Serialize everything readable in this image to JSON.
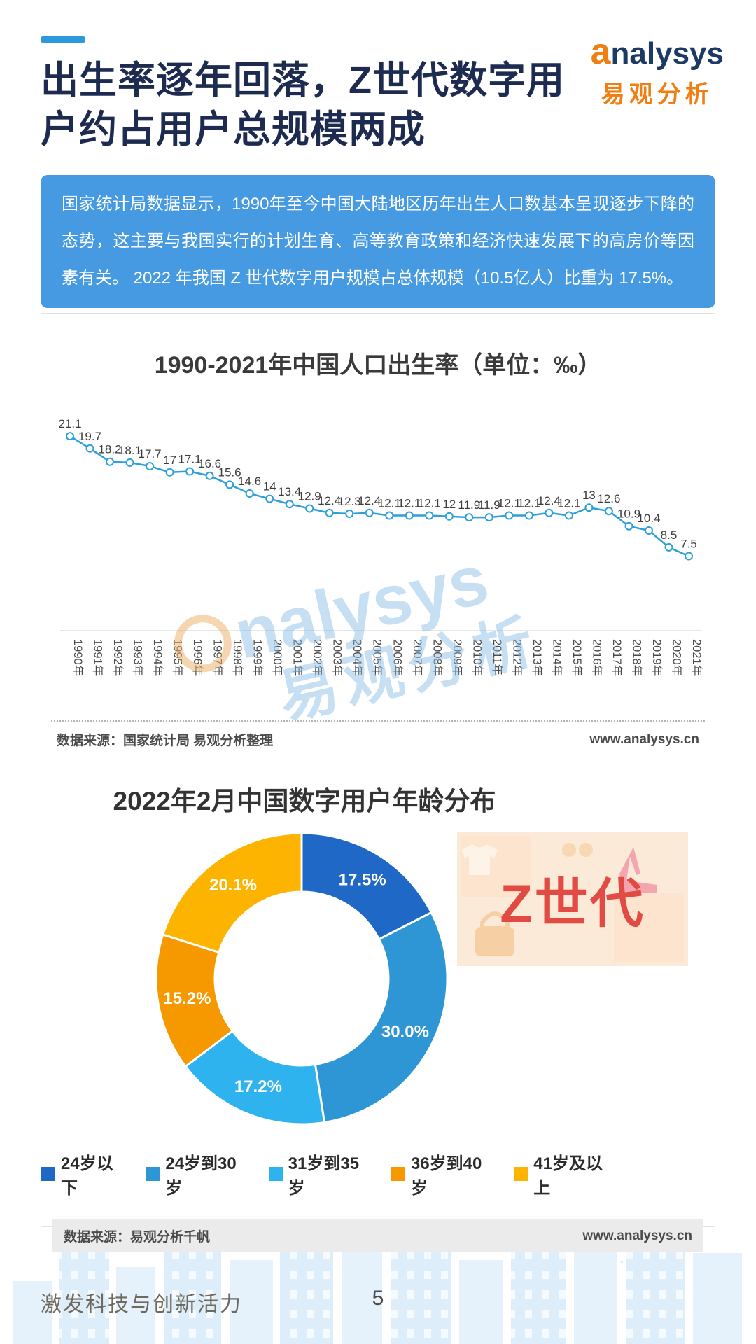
{
  "page": {
    "title_line1": "出生率逐年回落，Z世代数字用",
    "title_line2": "户约占用户总规模两成",
    "footer_slogan": "激发科技与创新活力",
    "page_number": "5"
  },
  "logo": {
    "name_a": "a",
    "name_rest": "nalysys",
    "cn": "易观分析"
  },
  "intro": {
    "text": "国家统计局数据显示，1990年至今中国大陆地区历年出生人口数基本呈现逐步下降的态势，这主要与我国实行的计划生育、高等教育政策和经济快速发展下的高房价等因素有关。 2022 年我国 Z 世代数字用户规模占总体规模（10.5亿人）比重为 17.5%。"
  },
  "line_chart": {
    "source": "数据来源：国家统计局 易观分析整理",
    "url": "www.analysys.cn"
  },
  "donut_chart": {
    "source": "数据来源：易观分析千帆",
    "url": "www.analysys.cn",
    "genz_label": "Z世代"
  },
  "watermark": {
    "en": "nalysys",
    "cn": "易观分析"
  },
  "chart_data": [
    {
      "type": "line",
      "title": "1990-2021年中国人口出生率（单位：‰）",
      "x": [
        "1990年",
        "1991年",
        "1992年",
        "1993年",
        "1994年",
        "1995年",
        "1996年",
        "1997年",
        "1998年",
        "1999年",
        "2000年",
        "2001年",
        "2002年",
        "2003年",
        "2004年",
        "2005年",
        "2006年",
        "2007年",
        "2008年",
        "2009年",
        "2010年",
        "2011年",
        "2012年",
        "2013年",
        "2014年",
        "2015年",
        "2016年",
        "2017年",
        "2018年",
        "2019年",
        "2020年",
        "2021年"
      ],
      "values": [
        21.1,
        19.7,
        18.2,
        18.1,
        17.7,
        17,
        17.1,
        16.6,
        15.6,
        14.6,
        14,
        13.4,
        12.9,
        12.4,
        12.3,
        12.4,
        12.1,
        12.1,
        12.1,
        12,
        11.9,
        11.9,
        12.1,
        12.1,
        12.4,
        12.1,
        13,
        12.6,
        10.9,
        10.4,
        8.5,
        7.5
      ],
      "unit": "‰",
      "ylim": [
        0,
        23
      ],
      "grid": false,
      "data_labels": true,
      "line_color": "#2da0dc"
    },
    {
      "type": "pie",
      "donut": true,
      "title": "2022年2月中国数字用户年龄分布",
      "labels": [
        "24岁以下",
        "24岁到30岁",
        "31岁到35岁",
        "36岁到40岁",
        "41岁及以上"
      ],
      "values": [
        17.5,
        30.0,
        17.2,
        15.2,
        20.1
      ],
      "colors": [
        "#1f68c5",
        "#2e96d5",
        "#2eb3ef",
        "#f69800",
        "#fcb400"
      ],
      "legend_position": "bottom"
    }
  ]
}
